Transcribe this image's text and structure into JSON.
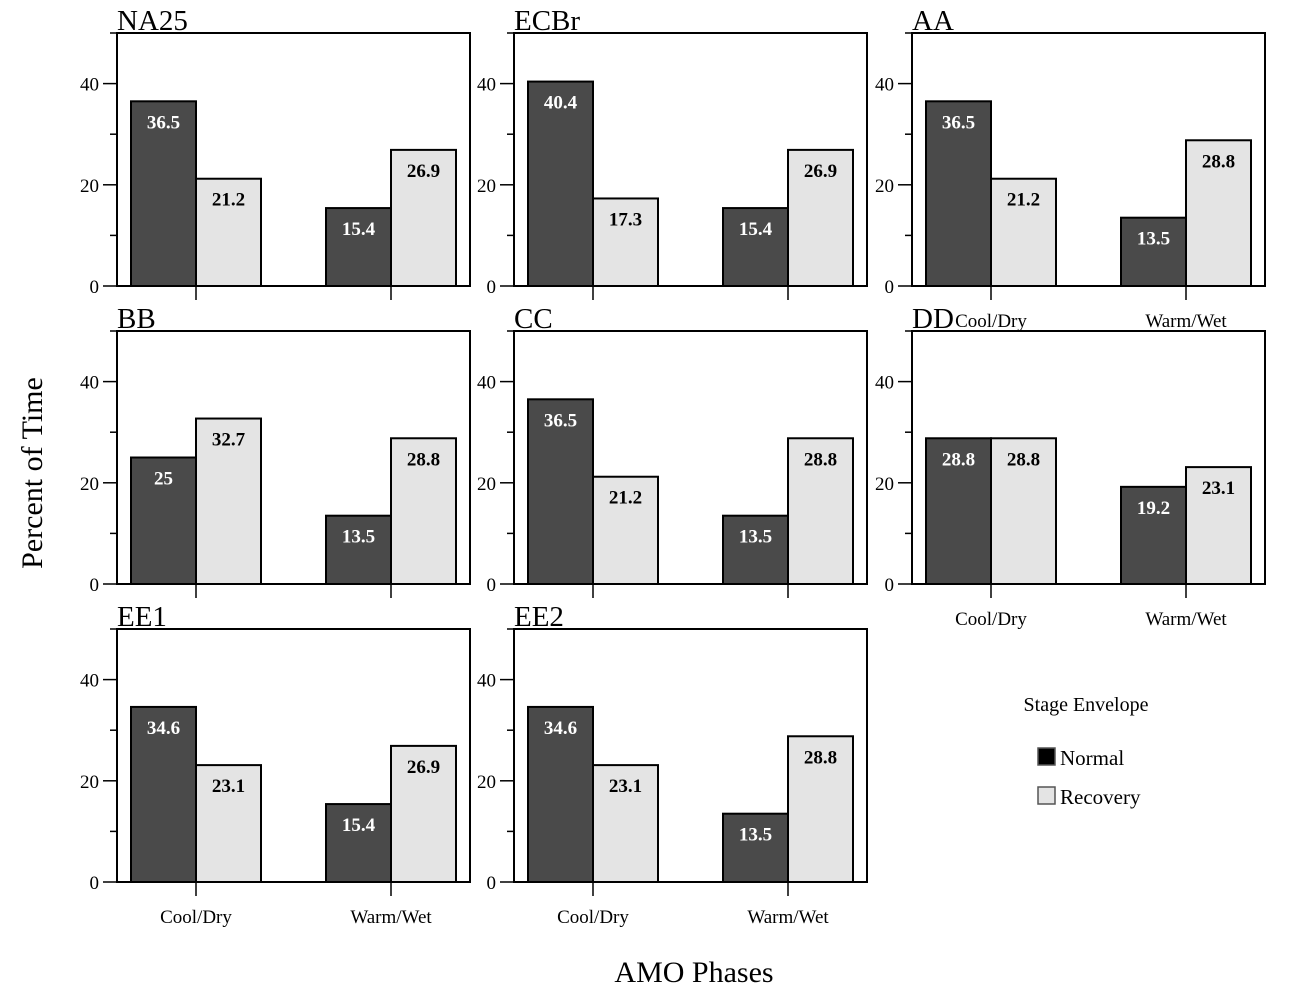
{
  "figure": {
    "ylabel": "Percent of Time",
    "xlabel": "AMO Phases"
  },
  "legend": {
    "title": "Stage Envelope",
    "items": [
      {
        "label": "Normal",
        "color": "#000000"
      },
      {
        "label": "Recovery",
        "color": "#e4e4e4"
      }
    ]
  },
  "colors": {
    "normal_bar": "#4a4a4a",
    "recovery_bar": "#e4e4e4",
    "normal_label": "#ffffff",
    "recovery_label": "#000000"
  },
  "chart_data": [
    {
      "type": "bar",
      "title": "NA25",
      "categories": [
        "Cool/Dry",
        "Warm/Wet"
      ],
      "ylim": [
        0,
        50
      ],
      "yticks": [
        0,
        20,
        40
      ],
      "series": [
        {
          "name": "Normal",
          "values": [
            36.5,
            15.4
          ]
        },
        {
          "name": "Recovery",
          "values": [
            21.2,
            26.9
          ]
        }
      ]
    },
    {
      "type": "bar",
      "title": "ECBr",
      "categories": [
        "Cool/Dry",
        "Warm/Wet"
      ],
      "ylim": [
        0,
        50
      ],
      "yticks": [
        0,
        20,
        40
      ],
      "series": [
        {
          "name": "Normal",
          "values": [
            40.4,
            15.4
          ]
        },
        {
          "name": "Recovery",
          "values": [
            17.3,
            26.9
          ]
        }
      ]
    },
    {
      "type": "bar",
      "title": "AA",
      "categories": [
        "Cool/Dry",
        "Warm/Wet"
      ],
      "ylim": [
        0,
        50
      ],
      "yticks": [
        0,
        20,
        40
      ],
      "series": [
        {
          "name": "Normal",
          "values": [
            36.5,
            13.5
          ]
        },
        {
          "name": "Recovery",
          "values": [
            21.2,
            28.8
          ]
        }
      ]
    },
    {
      "type": "bar",
      "title": "BB",
      "categories": [
        "Cool/Dry",
        "Warm/Wet"
      ],
      "ylim": [
        0,
        50
      ],
      "yticks": [
        0,
        20,
        40
      ],
      "series": [
        {
          "name": "Normal",
          "values": [
            25,
            13.5
          ]
        },
        {
          "name": "Recovery",
          "values": [
            32.7,
            28.8
          ]
        }
      ]
    },
    {
      "type": "bar",
      "title": "CC",
      "categories": [
        "Cool/Dry",
        "Warm/Wet"
      ],
      "ylim": [
        0,
        50
      ],
      "yticks": [
        0,
        20,
        40
      ],
      "series": [
        {
          "name": "Normal",
          "values": [
            36.5,
            13.5
          ]
        },
        {
          "name": "Recovery",
          "values": [
            21.2,
            28.8
          ]
        }
      ]
    },
    {
      "type": "bar",
      "title": "DD",
      "categories": [
        "Cool/Dry",
        "Warm/Wet"
      ],
      "ylim": [
        0,
        50
      ],
      "yticks": [
        0,
        20,
        40
      ],
      "series": [
        {
          "name": "Normal",
          "values": [
            28.8,
            19.2
          ]
        },
        {
          "name": "Recovery",
          "values": [
            28.8,
            23.1
          ]
        }
      ]
    },
    {
      "type": "bar",
      "title": "EE1",
      "categories": [
        "Cool/Dry",
        "Warm/Wet"
      ],
      "ylim": [
        0,
        50
      ],
      "yticks": [
        0,
        20,
        40
      ],
      "series": [
        {
          "name": "Normal",
          "values": [
            34.6,
            15.4
          ]
        },
        {
          "name": "Recovery",
          "values": [
            23.1,
            26.9
          ]
        }
      ]
    },
    {
      "type": "bar",
      "title": "EE2",
      "categories": [
        "Cool/Dry",
        "Warm/Wet"
      ],
      "ylim": [
        0,
        50
      ],
      "yticks": [
        0,
        20,
        40
      ],
      "series": [
        {
          "name": "Normal",
          "values": [
            34.6,
            13.5
          ]
        },
        {
          "name": "Recovery",
          "values": [
            23.1,
            28.8
          ]
        }
      ]
    }
  ]
}
